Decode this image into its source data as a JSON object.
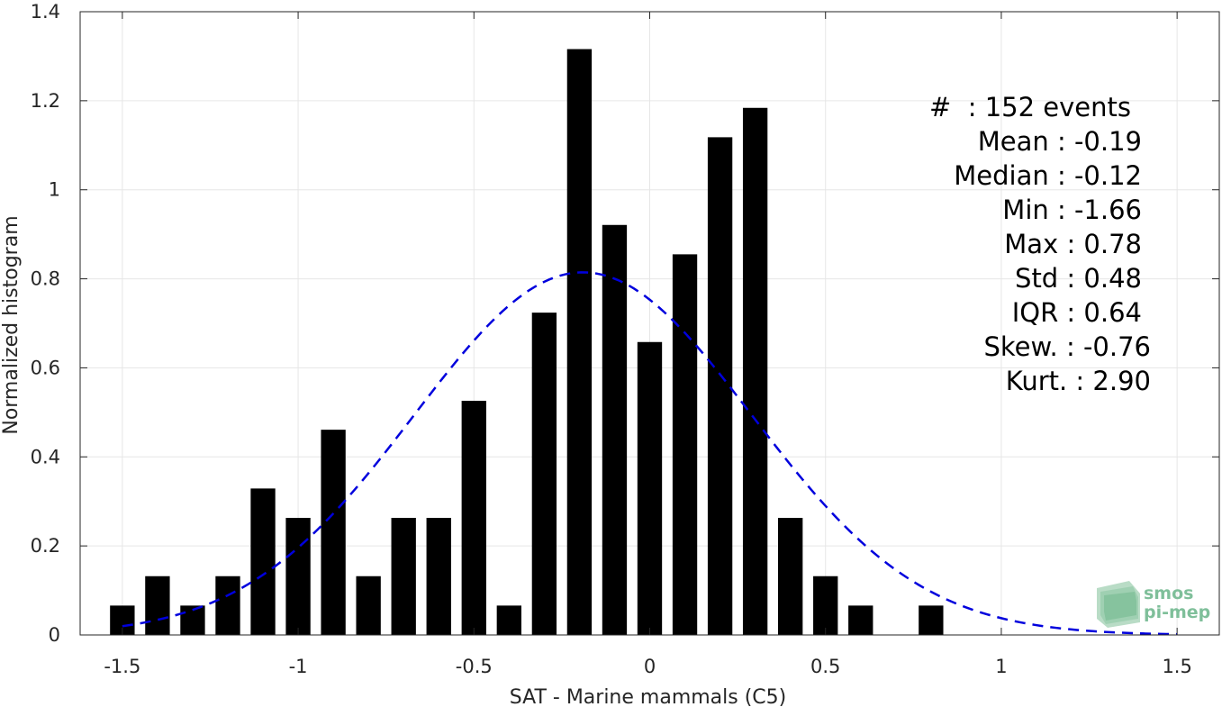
{
  "chart_data": {
    "type": "bar",
    "xlabel": "SAT - Marine mammals (C5)",
    "ylabel": "Normalized histogram",
    "xlim": [
      -1.62,
      1.62
    ],
    "ylim": [
      0,
      1.4
    ],
    "xticks": [
      -1.5,
      -1,
      -0.5,
      0,
      0.5,
      1,
      1.5
    ],
    "xtick_labels": [
      "-1.5",
      "-1",
      "-0.5",
      "0",
      "0.5",
      "1",
      "1.5"
    ],
    "yticks": [
      0,
      0.2,
      0.4,
      0.6,
      0.8,
      1,
      1.2,
      1.4
    ],
    "ytick_labels": [
      "0",
      "0.2",
      "0.4",
      "0.6",
      "0.8",
      "1",
      "1.2",
      "1.4"
    ],
    "grid": true,
    "bar_color": "#000000",
    "bar_width": 0.07,
    "bins": [
      {
        "x": -1.5,
        "value": 0.066
      },
      {
        "x": -1.4,
        "value": 0.132
      },
      {
        "x": -1.3,
        "value": 0.066
      },
      {
        "x": -1.2,
        "value": 0.132
      },
      {
        "x": -1.1,
        "value": 0.329
      },
      {
        "x": -1.0,
        "value": 0.263
      },
      {
        "x": -0.9,
        "value": 0.461
      },
      {
        "x": -0.8,
        "value": 0.132
      },
      {
        "x": -0.7,
        "value": 0.263
      },
      {
        "x": -0.6,
        "value": 0.263
      },
      {
        "x": -0.5,
        "value": 0.526
      },
      {
        "x": -0.4,
        "value": 0.066
      },
      {
        "x": -0.3,
        "value": 0.724
      },
      {
        "x": -0.2,
        "value": 1.316
      },
      {
        "x": -0.1,
        "value": 0.921
      },
      {
        "x": 0.0,
        "value": 0.658
      },
      {
        "x": 0.1,
        "value": 0.855
      },
      {
        "x": 0.2,
        "value": 1.118
      },
      {
        "x": 0.3,
        "value": 1.184
      },
      {
        "x": 0.4,
        "value": 0.263
      },
      {
        "x": 0.5,
        "value": 0.132
      },
      {
        "x": 0.6,
        "value": 0.066
      },
      {
        "x": 0.8,
        "value": 0.066
      }
    ],
    "fit_curve": {
      "style": "dashed",
      "color": "#0000dd",
      "mean": -0.19,
      "std": 0.48,
      "x_range": [
        -1.5,
        1.5
      ]
    }
  },
  "stats": [
    "#  : 152 events",
    "Mean : -0.19",
    "Median : -0.12",
    "Min : -1.66",
    "Max : 0.78",
    "Std : 0.48",
    "IQR : 0.64",
    "Skew. : -0.76",
    "Kurt. : 2.90"
  ],
  "logo": {
    "line1": "smos",
    "line2": "pi-mep"
  }
}
